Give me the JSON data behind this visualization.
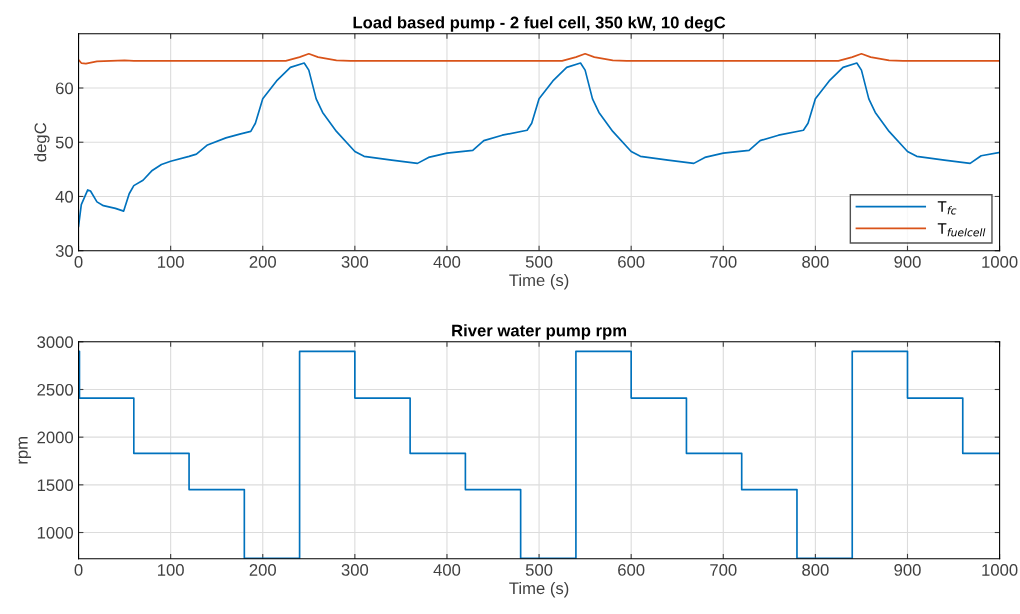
{
  "chart_data": [
    {
      "type": "line",
      "title": "Load based pump - 2 fuel cell, 350 kW, 10 degC",
      "xlabel": "Time (s)",
      "ylabel": "degC",
      "xlim": [
        0,
        1000
      ],
      "xticks": [
        0,
        100,
        200,
        300,
        400,
        500,
        600,
        700,
        800,
        900,
        1000
      ],
      "ylim": [
        30,
        70
      ],
      "yticks": [
        30,
        40,
        50,
        60
      ],
      "grid": true,
      "legend": "bottom right",
      "series": [
        {
          "name": "T$_{fc}$",
          "color": "#0072bd",
          "x": [
            0,
            3,
            10,
            13,
            20,
            27,
            40,
            49,
            55,
            60,
            70,
            80,
            90,
            100,
            120,
            128,
            140,
            160,
            175,
            187,
            192,
            200,
            215,
            230,
            245,
            250,
            258,
            265,
            280,
            300,
            310,
            340,
            368,
            380,
            400,
            428,
            440,
            460,
            487,
            492,
            500,
            515,
            530,
            545,
            550,
            558,
            565,
            580,
            600,
            610,
            640,
            668,
            680,
            700,
            728,
            740,
            760,
            787,
            792,
            800,
            815,
            830,
            845,
            850,
            858,
            865,
            880,
            900,
            910,
            940,
            968,
            980,
            1000
          ],
          "values": [
            34.5,
            38.5,
            41.2,
            41,
            39,
            38.3,
            37.8,
            37.3,
            40.5,
            42,
            43,
            44.8,
            45.9,
            46.5,
            47.4,
            47.8,
            49.5,
            50.8,
            51.5,
            52,
            53.5,
            58,
            61.3,
            63.8,
            64.6,
            63.3,
            58,
            55.5,
            52,
            48.3,
            47.4,
            46.7,
            46.1,
            47.2,
            48,
            48.5,
            50.3,
            51.3,
            52.2,
            53.5,
            58,
            61.3,
            63.8,
            64.6,
            63.3,
            58,
            55.5,
            52,
            48.3,
            47.4,
            46.7,
            46.1,
            47.2,
            48,
            48.5,
            50.3,
            51.3,
            52.2,
            53.5,
            58,
            61.3,
            63.8,
            64.6,
            63.3,
            58,
            55.5,
            52,
            48.3,
            47.4,
            46.7,
            46.1,
            47.5,
            48.1
          ]
        },
        {
          "name": "T$_{fuelcell}$",
          "color": "#d95319",
          "x": [
            0,
            3,
            8,
            20,
            50,
            60,
            225,
            240,
            250,
            260,
            280,
            295,
            525,
            540,
            550,
            560,
            580,
            595,
            825,
            840,
            850,
            860,
            880,
            895,
            1000
          ],
          "values": [
            65.2,
            64.6,
            64.5,
            64.9,
            65.1,
            65,
            65,
            65.7,
            66.3,
            65.7,
            65.1,
            65,
            65,
            65.7,
            66.3,
            65.7,
            65.1,
            65,
            65,
            65.7,
            66.3,
            65.7,
            65.1,
            65,
            65
          ]
        }
      ]
    },
    {
      "type": "step",
      "title": "River water pump rpm",
      "xlabel": "Time (s)",
      "ylabel": "rpm",
      "xlim": [
        0,
        1000
      ],
      "xticks": [
        0,
        100,
        200,
        300,
        400,
        500,
        600,
        700,
        800,
        900,
        1000
      ],
      "ylim": [
        725,
        3000
      ],
      "yticks": [
        1000,
        1500,
        2000,
        2500,
        3000
      ],
      "grid": true,
      "series": [
        {
          "color": "#0072bd",
          "x": [
            0,
            1,
            60,
            120,
            180,
            240,
            300,
            360,
            420,
            480,
            540,
            600,
            660,
            720,
            780,
            840,
            900,
            960,
            1000
          ],
          "values": [
            2900,
            2410,
            1830,
            1450,
            730,
            2900,
            2410,
            1830,
            1450,
            730,
            2900,
            2410,
            1830,
            1450,
            730,
            2900,
            2410,
            1830,
            1830
          ]
        }
      ]
    }
  ]
}
